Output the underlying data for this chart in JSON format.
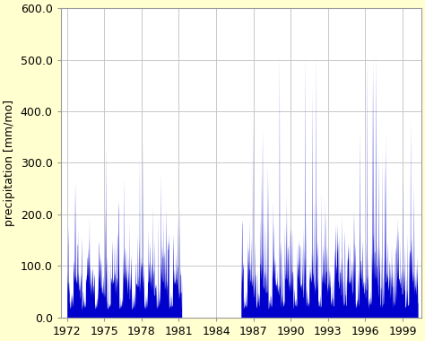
{
  "ylabel": "precipitation [mm/mo]",
  "xlim": [
    1971.5,
    2000.5
  ],
  "ylim": [
    0.0,
    600.0
  ],
  "yticks": [
    0.0,
    100.0,
    200.0,
    300.0,
    400.0,
    500.0,
    600.0
  ],
  "xticks": [
    1972,
    1975,
    1978,
    1981,
    1984,
    1987,
    1990,
    1993,
    1996,
    1999
  ],
  "line_color": "#0000cc",
  "fill_color": "#0000cc",
  "background_color": "#ffffd0",
  "plot_background": "#ffffff",
  "grid_color": "#c8c8c8",
  "tick_fontsize": 9,
  "ylabel_fontsize": 9,
  "gap_start": 1981.25,
  "gap_end": 1986.0,
  "seg1_start": 1972.0,
  "seg1_end": 1981.25,
  "seg2_start": 1986.0,
  "seg2_end": 2000.25
}
